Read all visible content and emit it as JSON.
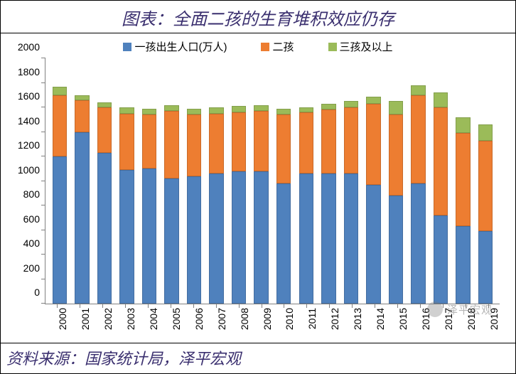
{
  "title": "图表：全面二孩的生育堆积效应仍存",
  "title_fontsize": 24,
  "source": "资料来源：国家统计局，泽平宏观",
  "source_fontsize": 22,
  "watermark": "泽平宏观",
  "watermark_fontsize": 15,
  "legend": {
    "items": [
      {
        "label": "一孩出生人口(万人)",
        "color": "#4f81bd"
      },
      {
        "label": "二孩",
        "color": "#ed7d31"
      },
      {
        "label": "三孩及以上",
        "color": "#9bbb59"
      }
    ],
    "fontsize": 15
  },
  "chart": {
    "type": "stacked-bar",
    "background_color": "#ffffff",
    "axis_color": "#808080",
    "ylim": [
      0,
      2000
    ],
    "yticks": [
      0,
      200,
      400,
      600,
      800,
      1000,
      1200,
      1400,
      1600,
      1800,
      2000
    ],
    "ytick_fontsize": 14,
    "xtick_fontsize": 14,
    "bar_width_ratio": 0.65,
    "categories": [
      "2000",
      "2001",
      "2002",
      "2003",
      "2004",
      "2005",
      "2006",
      "2007",
      "2008",
      "2009",
      "2010",
      "2011",
      "2012",
      "2013",
      "2014",
      "2015",
      "2016",
      "2017",
      "2018",
      "2019"
    ],
    "series": [
      {
        "name": "一孩出生人口(万人)",
        "color": "#4f81bd",
        "values": [
          1200,
          1400,
          1230,
          1090,
          1100,
          1020,
          1040,
          1060,
          1080,
          1080,
          980,
          1060,
          1060,
          1060,
          970,
          880,
          980,
          720,
          630,
          590
        ]
      },
      {
        "name": "二孩",
        "color": "#ed7d31",
        "values": [
          500,
          260,
          370,
          460,
          440,
          550,
          500,
          490,
          480,
          490,
          560,
          500,
          520,
          540,
          660,
          660,
          720,
          880,
          760,
          740
        ]
      },
      {
        "name": "三孩及以上",
        "color": "#9bbb59",
        "values": [
          70,
          40,
          40,
          50,
          50,
          50,
          50,
          50,
          50,
          50,
          50,
          40,
          50,
          50,
          60,
          110,
          80,
          120,
          130,
          130
        ]
      }
    ]
  }
}
